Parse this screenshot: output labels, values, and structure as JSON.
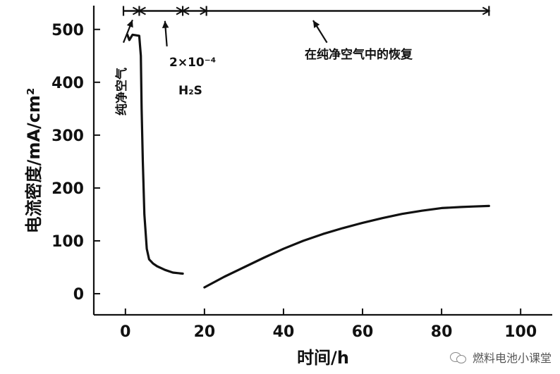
{
  "chart_data": {
    "type": "line",
    "title": "",
    "xlabel": "时间/h",
    "ylabel": "电流密度/mA/cm²",
    "xlim": [
      -8,
      108
    ],
    "ylim": [
      -40,
      545
    ],
    "x_ticks": [
      0,
      20,
      40,
      60,
      80,
      100
    ],
    "y_ticks": [
      0,
      100,
      200,
      300,
      400,
      500
    ],
    "grid": false,
    "segments": [
      {
        "x": [
          0.5,
          1.0,
          1.8,
          3.5,
          3.9,
          4.1,
          4.4,
          4.8,
          5.4,
          6.0,
          7.0,
          8.0,
          10.0,
          12.0,
          14.5
        ],
        "y": [
          490,
          480,
          490,
          488,
          450,
          350,
          250,
          150,
          85,
          65,
          57,
          52,
          45,
          40,
          38
        ]
      },
      {
        "x": [
          20,
          25,
          30,
          35,
          40,
          45,
          50,
          55,
          60,
          65,
          70,
          75,
          80,
          85,
          88,
          92
        ],
        "y": [
          12,
          32,
          50,
          68,
          85,
          100,
          113,
          124,
          134,
          143,
          151,
          157,
          162,
          164,
          165,
          166
        ]
      }
    ],
    "annotations": {
      "pure_air": "纯净空气",
      "h2s_conc": "2×10⁻⁴",
      "h2s": "H₂S",
      "recovery": "在纯净空气中的恢复"
    },
    "interval_bar": {
      "y": 535,
      "ticks_x": [
        -0.5,
        3.5,
        14.5,
        20.5,
        92
      ],
      "arrowheads_right_x": [
        3.5,
        14.5,
        20.5,
        92
      ],
      "arrowheads_left_x": [
        3.5,
        14.5
      ]
    },
    "arrows": [
      {
        "from": [
          -0.5,
          475
        ],
        "to": [
          1.8,
          518
        ]
      },
      {
        "from": [
          10.5,
          468
        ],
        "to": [
          10,
          516
        ]
      },
      {
        "from": [
          51,
          475
        ],
        "to": [
          47.5,
          517
        ]
      }
    ]
  },
  "watermark": {
    "text": "燃料电池小课堂",
    "icon": "wechat-icon"
  }
}
